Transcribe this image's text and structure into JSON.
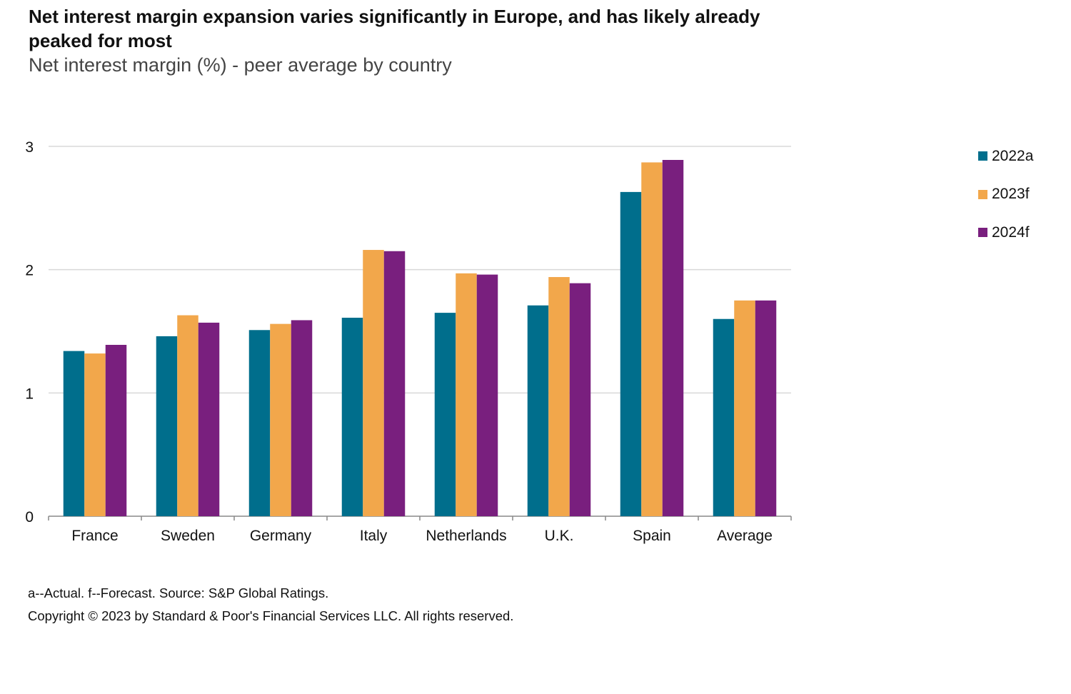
{
  "header": {
    "title": "Net interest margin expansion varies significantly in Europe, and has likely already peaked for most",
    "subtitle": "Net interest margin (%) - peer average by country"
  },
  "colors": {
    "2022a": "#006e8c",
    "2023f": "#f2a74b",
    "2024f": "#791f7e"
  },
  "chart_data": {
    "type": "bar",
    "title": "Net interest margin expansion varies significantly in Europe, and has likely already peaked for most",
    "subtitle": "Net interest margin (%) - peer average by country",
    "xlabel": "",
    "ylabel": "",
    "ylim": [
      0,
      3
    ],
    "yticks": [
      0,
      1,
      2,
      3
    ],
    "grid": true,
    "legend_position": "right",
    "categories": [
      "France",
      "Sweden",
      "Germany",
      "Italy",
      "Netherlands",
      "U.K.",
      "Spain",
      "Average"
    ],
    "series": [
      {
        "name": "2022a",
        "color": "#006e8c",
        "values": [
          1.34,
          1.46,
          1.51,
          1.61,
          1.65,
          1.71,
          2.63,
          1.6
        ]
      },
      {
        "name": "2023f",
        "color": "#f2a74b",
        "values": [
          1.32,
          1.63,
          1.56,
          2.16,
          1.97,
          1.94,
          2.87,
          1.75
        ]
      },
      {
        "name": "2024f",
        "color": "#791f7e",
        "values": [
          1.39,
          1.57,
          1.59,
          2.15,
          1.96,
          1.89,
          2.89,
          1.75
        ]
      }
    ]
  },
  "footer": {
    "note": "a--Actual. f--Forecast. Source: S&P Global Ratings.",
    "copyright": "Copyright © 2023 by Standard & Poor's Financial Services LLC. All rights reserved."
  }
}
